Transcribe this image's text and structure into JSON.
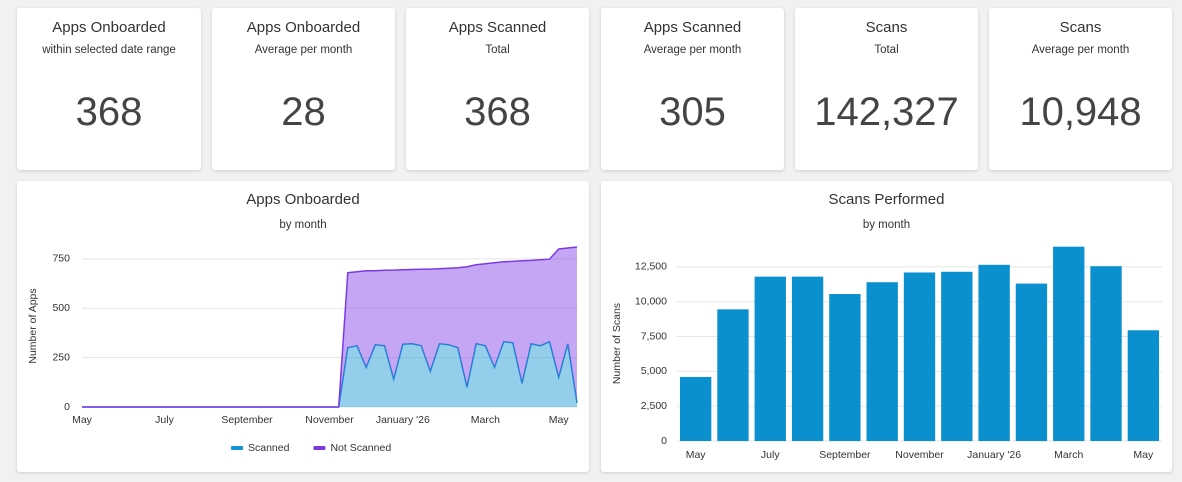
{
  "cards": [
    {
      "title": "Apps Onboarded",
      "subtitle": "within selected date range",
      "value": "368"
    },
    {
      "title": "Apps Onboarded",
      "subtitle": "Average per month",
      "value": "28"
    },
    {
      "title": "Apps Scanned",
      "subtitle": "Total",
      "value": "368"
    },
    {
      "title": "Apps Scanned",
      "subtitle": "Average per month",
      "value": "305"
    },
    {
      "title": "Scans",
      "subtitle": "Total",
      "value": "142,327"
    },
    {
      "title": "Scans",
      "subtitle": "Average per month",
      "value": "10,948"
    }
  ],
  "chart_data": [
    {
      "type": "area",
      "stacked": true,
      "title": "Apps Onboarded",
      "subtitle": "by month",
      "y_label": "Number of Apps",
      "categories": [
        "May",
        null,
        null,
        null,
        null,
        null,
        null,
        null,
        null,
        "July",
        null,
        null,
        null,
        null,
        null,
        null,
        null,
        null,
        "September",
        null,
        null,
        null,
        null,
        null,
        null,
        null,
        null,
        "November",
        null,
        null,
        null,
        null,
        null,
        null,
        null,
        "January '26",
        null,
        null,
        null,
        null,
        null,
        null,
        null,
        null,
        "March",
        null,
        null,
        null,
        null,
        null,
        null,
        null,
        "May",
        null,
        null
      ],
      "series": [
        {
          "name": "Scanned",
          "color": "#1592d3",
          "values": [
            0,
            0,
            0,
            0,
            0,
            0,
            0,
            0,
            0,
            0,
            0,
            0,
            0,
            0,
            0,
            0,
            0,
            0,
            0,
            0,
            0,
            0,
            0,
            0,
            0,
            0,
            0,
            0,
            0,
            300,
            310,
            200,
            315,
            310,
            140,
            318,
            320,
            310,
            180,
            320,
            315,
            300,
            100,
            320,
            310,
            200,
            330,
            325,
            120,
            320,
            310,
            330,
            150,
            320,
            20
          ]
        },
        {
          "name": "Not Scanned",
          "color": "#7c3ae6",
          "values": [
            0,
            0,
            0,
            0,
            0,
            0,
            0,
            0,
            0,
            0,
            0,
            0,
            0,
            0,
            0,
            0,
            0,
            0,
            0,
            0,
            0,
            0,
            0,
            0,
            0,
            0,
            0,
            0,
            0,
            380,
            375,
            490,
            375,
            382,
            553,
            377,
            376,
            387,
            518,
            380,
            387,
            405,
            610,
            400,
            415,
            530,
            405,
            412,
            620,
            422,
            435,
            418,
            650,
            485,
            790
          ]
        }
      ],
      "ylim": [
        0,
        820
      ],
      "yticks": [
        0,
        250,
        500,
        750
      ],
      "grid": true,
      "legend": "bottom"
    },
    {
      "type": "bar",
      "title": "Scans Performed",
      "subtitle": "by month",
      "y_label": "Number of Scans",
      "categories": [
        "May",
        null,
        "July",
        null,
        "September",
        null,
        "November",
        null,
        "January '26",
        null,
        "March",
        null,
        "May"
      ],
      "values": [
        4600,
        9450,
        11800,
        11800,
        10550,
        11400,
        12100,
        12150,
        12650,
        11300,
        13950,
        12550,
        7950
      ],
      "color": "#0a8fcf",
      "ylim": [
        0,
        14000
      ],
      "yticks": [
        0,
        {
          "value": 2500,
          "label": "2,500"
        },
        {
          "value": 5000,
          "label": "5,000"
        },
        {
          "value": 7500,
          "label": "7,500"
        },
        {
          "value": 10000,
          "label": "10,000"
        },
        {
          "value": 12500,
          "label": "12,500"
        }
      ],
      "grid": true
    }
  ]
}
